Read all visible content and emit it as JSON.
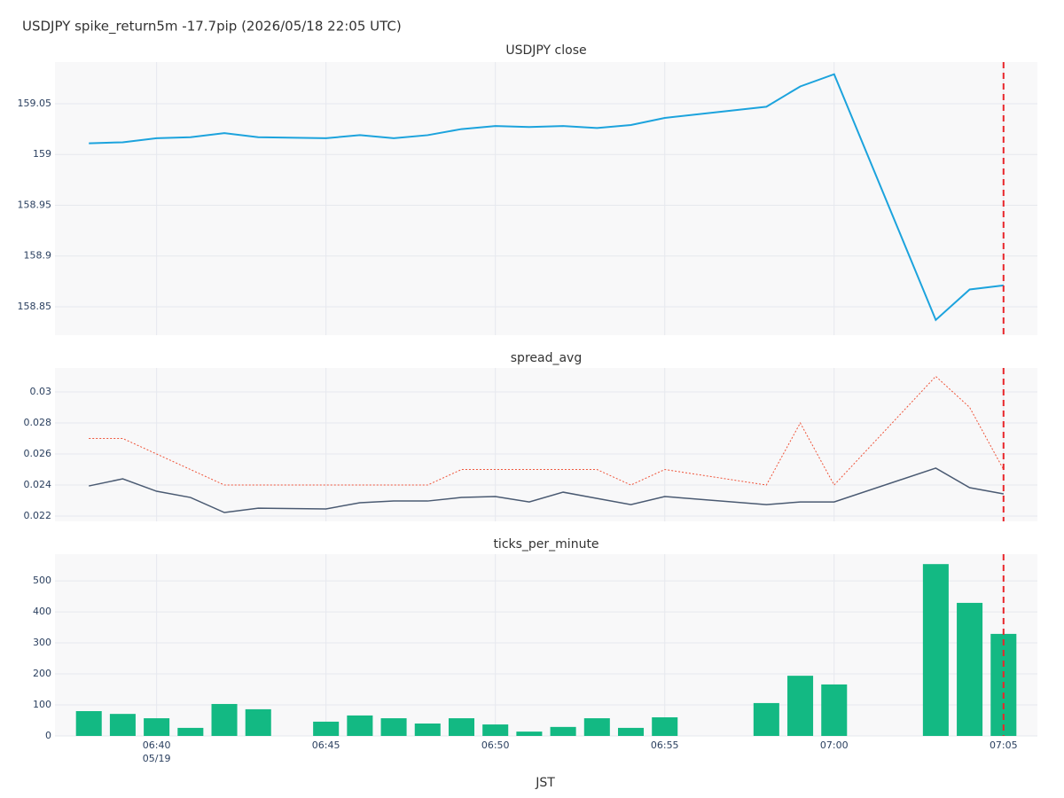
{
  "title": "USDJPY spike_return5m -17.7pip (2026/05/18 22:05 UTC)",
  "xlabel": "JST",
  "x_date_label": "05/19",
  "chart_data": [
    {
      "type": "line",
      "title": "USDJPY close",
      "color": "#1ca3dd",
      "x": [
        "06:38",
        "06:39",
        "06:40",
        "06:41",
        "06:42",
        "06:43",
        "06:45",
        "06:46",
        "06:47",
        "06:48",
        "06:49",
        "06:50",
        "06:51",
        "06:52",
        "06:53",
        "06:54",
        "06:55",
        "06:58",
        "06:59",
        "07:00",
        "07:03",
        "07:04",
        "07:05"
      ],
      "values": [
        159.011,
        159.012,
        159.016,
        159.017,
        159.021,
        159.017,
        159.016,
        159.019,
        159.016,
        159.019,
        159.025,
        159.028,
        159.027,
        159.028,
        159.026,
        159.029,
        159.036,
        159.047,
        159.067,
        159.079,
        158.837,
        158.867,
        158.871
      ],
      "ylim": [
        158.822,
        159.091
      ],
      "yticks": [
        158.85,
        158.9,
        158.95,
        159,
        159.05
      ],
      "xlim": [
        "06:37",
        "07:06"
      ],
      "vline": "07:05",
      "grid": true
    },
    {
      "type": "line",
      "title": "spread_avg",
      "x": [
        "06:38",
        "06:39",
        "06:40",
        "06:41",
        "06:42",
        "06:43",
        "06:45",
        "06:46",
        "06:47",
        "06:48",
        "06:49",
        "06:50",
        "06:51",
        "06:52",
        "06:53",
        "06:54",
        "06:55",
        "06:58",
        "06:59",
        "07:00",
        "07:03",
        "07:04",
        "07:05"
      ],
      "series": [
        {
          "color": "#ef553b",
          "dash": "dot",
          "values": [
            0.027,
            0.027,
            0.026,
            0.025,
            0.024,
            0.024,
            0.024,
            0.024,
            0.024,
            0.024,
            0.025,
            0.025,
            0.025,
            0.025,
            0.025,
            0.024,
            0.025,
            0.024,
            0.028,
            0.024,
            0.031,
            0.029,
            0.025
          ]
        },
        {
          "color": "#4a5a72",
          "dash": "solid",
          "values": [
            0.02394,
            0.0244,
            0.0236,
            0.0232,
            0.02223,
            0.02251,
            0.02246,
            0.02286,
            0.02297,
            0.02297,
            0.0232,
            0.02326,
            0.02291,
            0.02354,
            0.02314,
            0.02274,
            0.02326,
            0.02274,
            0.02291,
            0.02291,
            0.02509,
            0.02383,
            0.02343
          ]
        }
      ],
      "ylim": [
        0.02166,
        0.03154
      ],
      "yticks": [
        0.022,
        0.024,
        0.026,
        0.028,
        0.03
      ],
      "xlim": [
        "06:37",
        "07:06"
      ],
      "vline": "07:05",
      "grid": true
    },
    {
      "type": "bar",
      "title": "ticks_per_minute",
      "color": "#13b983",
      "x": [
        "06:38",
        "06:39",
        "06:40",
        "06:41",
        "06:42",
        "06:43",
        "06:45",
        "06:46",
        "06:47",
        "06:48",
        "06:49",
        "06:50",
        "06:51",
        "06:52",
        "06:53",
        "06:54",
        "06:55",
        "06:58",
        "06:59",
        "07:00",
        "07:03",
        "07:04",
        "07:05"
      ],
      "values": [
        80,
        71,
        57,
        26,
        103,
        86,
        46,
        66,
        57,
        40,
        57,
        37,
        14,
        29,
        57,
        26,
        60,
        106,
        194,
        166,
        554,
        429,
        329
      ],
      "ylim": [
        0,
        586
      ],
      "yticks": [
        0,
        100,
        200,
        300,
        400,
        500
      ],
      "xlim": [
        "06:37",
        "07:06"
      ],
      "xticks": [
        "06:40",
        "06:45",
        "06:50",
        "06:55",
        "07:00",
        "07:05"
      ],
      "vline": "07:05",
      "grid": true
    }
  ]
}
